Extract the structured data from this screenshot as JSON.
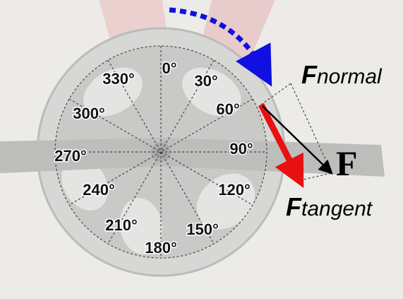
{
  "angles": [
    "0°",
    "30°",
    "60°",
    "90°",
    "120°",
    "150°",
    "180°",
    "210°",
    "240°",
    "270°",
    "300°",
    "330°"
  ],
  "forces": {
    "normal": {
      "symbol": "F",
      "subscript": "normal"
    },
    "tangent": {
      "symbol": "F",
      "subscript": "tangent"
    },
    "resultant": "F"
  }
}
